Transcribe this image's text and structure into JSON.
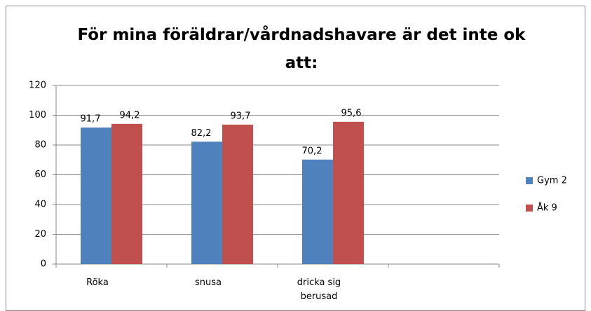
{
  "chart_data": {
    "type": "bar",
    "title": "För mina föräldrar/vårdnadshavare är det inte ok att:",
    "categories": [
      "Röka",
      "snusa",
      "dricka sig berusad",
      null
    ],
    "series": [
      {
        "name": "Gym 2",
        "color": "#4f81bd",
        "values": [
          91.7,
          82.2,
          70.2,
          null
        ],
        "value_labels": [
          "91,7",
          "82,2",
          "70,2",
          null
        ]
      },
      {
        "name": "Åk 9",
        "color": "#c0504d",
        "values": [
          94.2,
          93.7,
          95.6,
          null
        ],
        "value_labels": [
          "94,2",
          "93,7",
          "95,6",
          null
        ]
      }
    ],
    "ylim": [
      0,
      120
    ],
    "yticks": [
      0,
      20,
      40,
      60,
      80,
      100,
      120
    ],
    "grid": true,
    "legend": "right"
  }
}
